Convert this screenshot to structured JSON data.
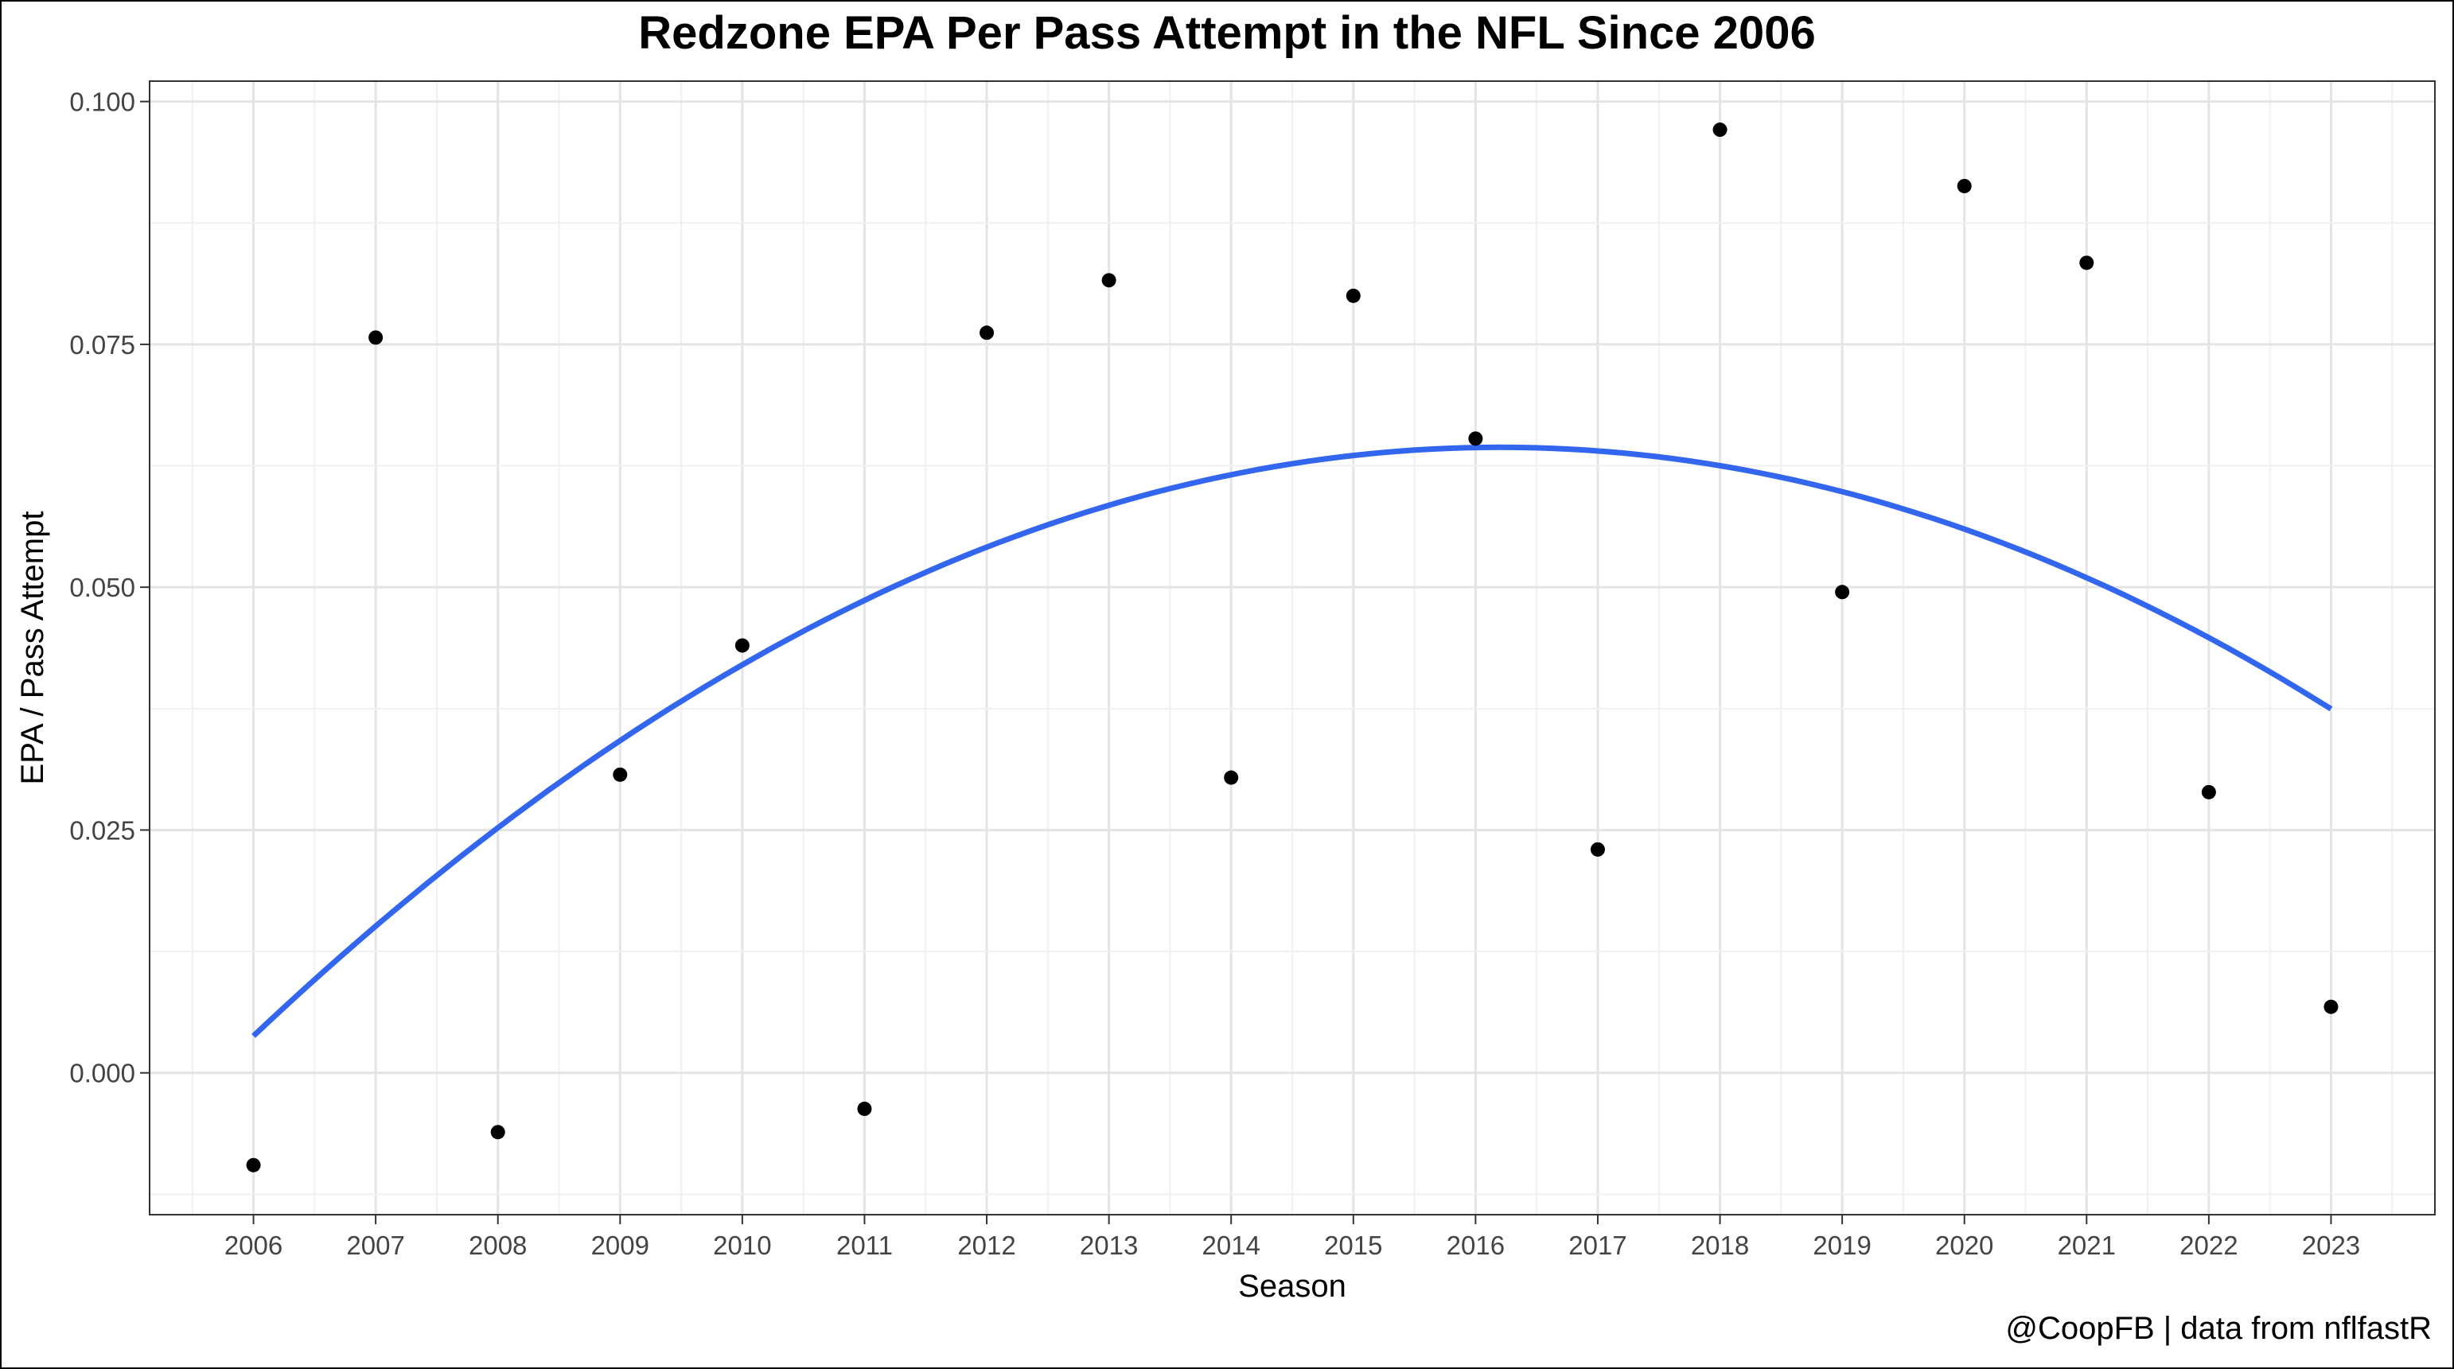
{
  "chart_data": {
    "type": "scatter",
    "title": "Redzone EPA Per Pass Attempt in the NFL Since 2006",
    "xlabel": "Season",
    "ylabel": "EPA / Pass Attempt",
    "caption": "@CoopFB | data from nflfastR",
    "x": [
      2006,
      2007,
      2008,
      2009,
      2010,
      2011,
      2012,
      2013,
      2014,
      2015,
      2016,
      2017,
      2018,
      2019,
      2020,
      2021,
      2022,
      2023
    ],
    "y": [
      -0.0095,
      0.0757,
      -0.0061,
      0.0307,
      0.044,
      -0.0037,
      0.0762,
      0.0816,
      0.0304,
      0.08,
      0.0653,
      0.023,
      0.0971,
      0.0495,
      0.0913,
      0.0834,
      0.0289,
      0.0068
    ],
    "trend": {
      "type": "quadratic",
      "color": "#3366ee",
      "xstart": 2006,
      "xend": 2023,
      "ystart": 0.0038,
      "ypeak_x": 2016.2,
      "ypeak": 0.0644,
      "yend": 0.037
    },
    "x_ticks": [
      "2006",
      "2007",
      "2008",
      "2009",
      "2010",
      "2011",
      "2012",
      "2013",
      "2014",
      "2015",
      "2016",
      "2017",
      "2018",
      "2019",
      "2020",
      "2021",
      "2022",
      "2023"
    ],
    "y_ticks": [
      "0.000",
      "0.025",
      "0.050",
      "0.075",
      "0.100"
    ],
    "xlim": [
      2005.15,
      2023.85
    ],
    "ylim": [
      -0.0146,
      0.1021
    ],
    "grid": true,
    "point_color": "#000000"
  }
}
